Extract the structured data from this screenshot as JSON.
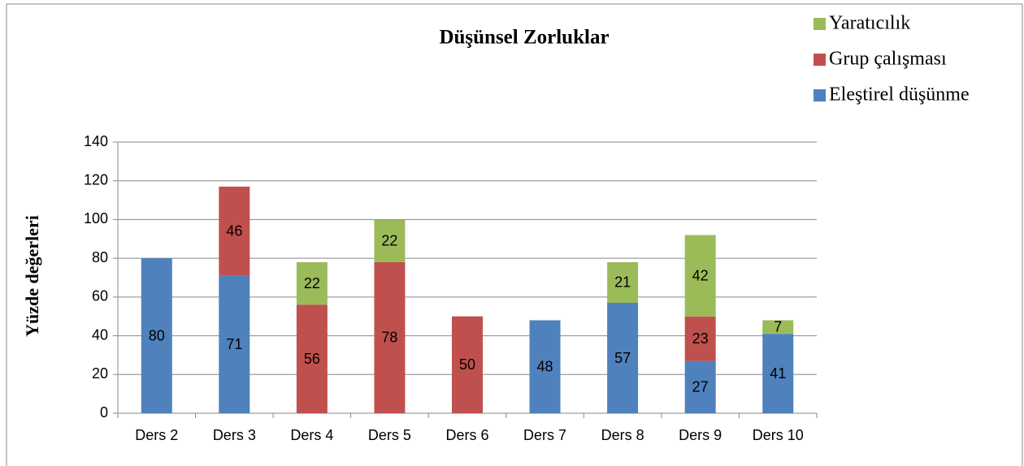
{
  "chart_data": {
    "type": "stacked_bar",
    "title": "Düşünsel  Zorluklar",
    "y_label": "Yüzde değerleri",
    "categories": [
      "Ders 2",
      "Ders 3",
      "Ders 4",
      "Ders 5",
      "Ders 6",
      "Ders 7",
      "Ders 8",
      "Ders 9",
      "Ders 10"
    ],
    "series": [
      {
        "name": "Eleştirel düşünme",
        "color": "#4f81bd",
        "values": [
          80,
          71,
          null,
          null,
          null,
          48,
          57,
          27,
          41
        ]
      },
      {
        "name": "Grup çalışması",
        "color": "#c0504d",
        "values": [
          null,
          46,
          56,
          78,
          50,
          null,
          null,
          23,
          null
        ]
      },
      {
        "name": "Yaratıcılık",
        "color": "#9bbb59",
        "values": [
          null,
          null,
          22,
          22,
          null,
          null,
          21,
          42,
          7
        ]
      }
    ],
    "ylim": [
      0,
      140
    ],
    "yticks": [
      0,
      20,
      40,
      60,
      80,
      100,
      120,
      140
    ],
    "grid": true,
    "legend": "top-right"
  }
}
